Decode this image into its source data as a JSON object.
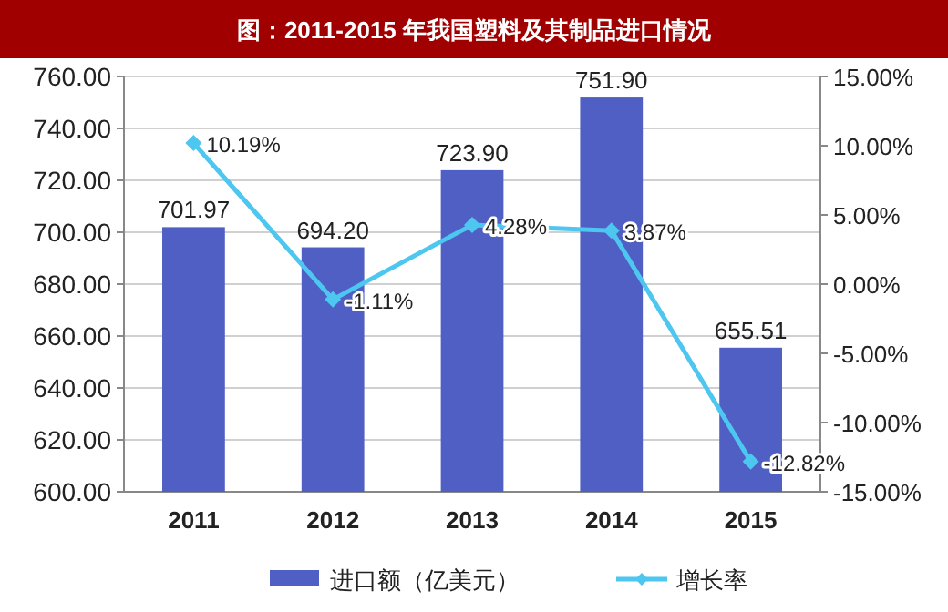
{
  "chart_data": {
    "type": "bar",
    "title": "图：2011-2015 年我国塑料及其制品进口情况",
    "categories": [
      "2011",
      "2012",
      "2013",
      "2014",
      "2015"
    ],
    "series": [
      {
        "name": "进口额（亿美元）",
        "color": "#4f5fc4",
        "values": [
          701.97,
          694.2,
          723.9,
          751.9,
          655.51
        ],
        "value_labels": [
          "701.97",
          "694.20",
          "723.90",
          "751.90",
          "655.51"
        ]
      },
      {
        "name": "增长率",
        "type": "line",
        "axis": "y2",
        "color": "#4dc6f0",
        "marker": "diamond",
        "values": [
          10.19,
          -1.11,
          4.28,
          3.87,
          -12.82
        ],
        "value_labels": [
          "10.19%",
          "-1.11%",
          "4.28%",
          "3.87%",
          "-12.82%"
        ]
      }
    ],
    "ylim": [
      600,
      760
    ],
    "yticks": [
      {
        "value": 600,
        "label": "600.00"
      },
      {
        "value": 620,
        "label": "620.00"
      },
      {
        "value": 640,
        "label": "640.00"
      },
      {
        "value": 660,
        "label": "660.00"
      },
      {
        "value": 680,
        "label": "680.00"
      },
      {
        "value": 700,
        "label": "700.00"
      },
      {
        "value": 720,
        "label": "720.00"
      },
      {
        "value": 740,
        "label": "740.00"
      },
      {
        "value": 760,
        "label": "760.00"
      }
    ],
    "y2lim": [
      -15,
      15
    ],
    "y2ticks": [
      {
        "value": -15,
        "label": "-15.00%"
      },
      {
        "value": -10,
        "label": "-10.00%"
      },
      {
        "value": -5,
        "label": "-5.00%"
      },
      {
        "value": 0,
        "label": "0.00%"
      },
      {
        "value": 5,
        "label": "5.00%"
      },
      {
        "value": 10,
        "label": "10.00%"
      },
      {
        "value": 15,
        "label": "15.00%"
      }
    ],
    "grid": "y",
    "legend": "bottom"
  }
}
